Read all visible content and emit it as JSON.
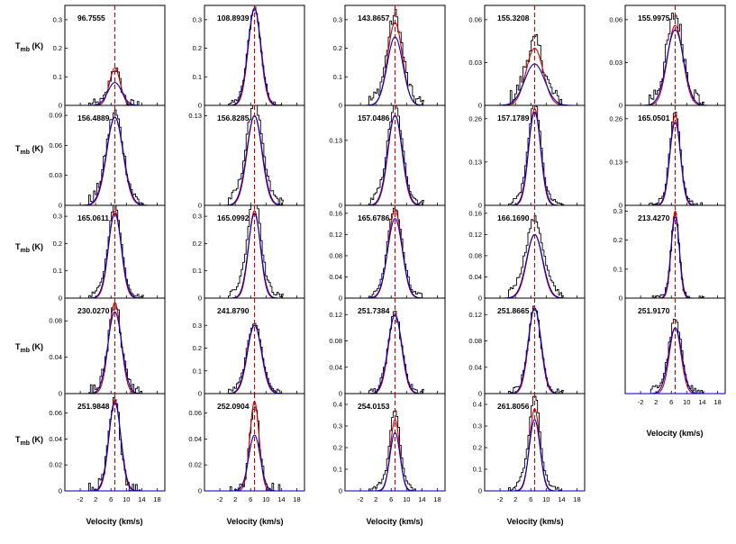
{
  "chart_data": {
    "type": "line",
    "ylabel": "Tmb (K)",
    "ylabel_main": "T",
    "ylabel_sub": "mb",
    "ylabel_unit": "(K)",
    "xlabel": "Velocity (km/s)",
    "xlim": [
      -6,
      20
    ],
    "xticks": [
      "-2",
      "2",
      "6",
      "10",
      "14",
      "18"
    ],
    "xtick_values": [
      -2,
      2,
      6,
      10,
      14,
      18
    ],
    "reference_velocity": 7.0,
    "colors": {
      "observed": "#000000",
      "model_a": "#cc0000",
      "model_b": "#0000cc",
      "reference_line": "#cc0000"
    },
    "legend": "none",
    "grid": false,
    "panels": [
      {
        "label": "96.7555",
        "ylim": [
          0,
          0.35
        ],
        "yticks": [
          "0",
          "0.1",
          "0.2",
          "0.3"
        ],
        "ytick_values": [
          0,
          0.1,
          0.2,
          0.3
        ],
        "peak_red": 0.13,
        "peak_blue": 0.08,
        "width_red": 1.4,
        "width_blue": 1.8,
        "noise": 0.018,
        "wing": 0.01
      },
      {
        "label": "108.8939",
        "ylim": [
          0,
          0.35
        ],
        "yticks": [
          "0",
          "0.1",
          "0.2",
          "0.3"
        ],
        "ytick_values": [
          0,
          0.1,
          0.2,
          0.3
        ],
        "peak_red": 0.34,
        "peak_blue": 0.34,
        "width_red": 1.6,
        "width_blue": 1.7,
        "noise": 0.008,
        "wing": 0.03
      },
      {
        "label": "143.8657",
        "ylim": [
          0,
          0.35
        ],
        "yticks": [
          "0",
          "0.1",
          "0.2",
          "0.3"
        ],
        "ytick_values": [
          0,
          0.1,
          0.2,
          0.3
        ],
        "peak_red": 0.29,
        "peak_blue": 0.24,
        "width_red": 1.9,
        "width_blue": 2.0,
        "noise": 0.025,
        "wing": 0.05
      },
      {
        "label": "155.3208",
        "ylim": [
          0,
          0.07
        ],
        "yticks": [
          "0",
          "0.03",
          "0.06"
        ],
        "ytick_values": [
          0,
          0.03,
          0.06
        ],
        "peak_red": 0.04,
        "peak_blue": 0.029,
        "width_red": 2.2,
        "width_blue": 2.6,
        "noise": 0.006,
        "wing": 0.008
      },
      {
        "label": "155.9975",
        "ylim": [
          0,
          0.07
        ],
        "yticks": [
          "0",
          "0.03",
          "0.06"
        ],
        "ytick_values": [
          0,
          0.03,
          0.06
        ],
        "peak_red": 0.056,
        "peak_blue": 0.053,
        "width_red": 2.0,
        "width_blue": 2.2,
        "noise": 0.007,
        "wing": 0.012
      },
      {
        "label": "156.4889",
        "ylim": [
          0,
          0.1
        ],
        "yticks": [
          "0",
          "0.03",
          "0.06",
          "0.09"
        ],
        "ytick_values": [
          0,
          0.03,
          0.06,
          0.09
        ],
        "peak_red": 0.088,
        "peak_blue": 0.088,
        "width_red": 2.1,
        "width_blue": 2.2,
        "noise": 0.006,
        "wing": 0.012
      },
      {
        "label": "156.8285",
        "ylim": [
          0,
          0.145
        ],
        "yticks": [
          "0",
          "0.13"
        ],
        "ytick_values": [
          0,
          0.13
        ],
        "peak_red": 0.13,
        "peak_blue": 0.13,
        "width_red": 1.9,
        "width_blue": 2.0,
        "noise": 0.006,
        "wing": 0.03
      },
      {
        "label": "157.0486",
        "ylim": [
          0,
          0.2
        ],
        "yticks": [
          "0",
          "0.13"
        ],
        "ytick_values": [
          0,
          0.13
        ],
        "peak_red": 0.18,
        "peak_blue": 0.18,
        "width_red": 1.8,
        "width_blue": 1.9,
        "noise": 0.007,
        "wing": 0.035
      },
      {
        "label": "157.1789",
        "ylim": [
          0,
          0.3
        ],
        "yticks": [
          "0",
          "0.13",
          "0.26"
        ],
        "ytick_values": [
          0,
          0.13,
          0.26
        ],
        "peak_red": 0.29,
        "peak_blue": 0.28,
        "width_red": 1.5,
        "width_blue": 1.6,
        "noise": 0.007,
        "wing": 0.05
      },
      {
        "label": "165.0501",
        "ylim": [
          0,
          0.3
        ],
        "yticks": [
          "0",
          "0.13",
          "0.26"
        ],
        "ytick_values": [
          0,
          0.13,
          0.26
        ],
        "peak_red": 0.27,
        "peak_blue": 0.25,
        "width_red": 1.3,
        "width_blue": 1.4,
        "noise": 0.007,
        "wing": 0.03
      },
      {
        "label": "165.0611",
        "ylim": [
          0,
          0.34
        ],
        "yticks": [
          "0",
          "0.1",
          "0.2",
          "0.3"
        ],
        "ytick_values": [
          0,
          0.1,
          0.2,
          0.3
        ],
        "peak_red": 0.32,
        "peak_blue": 0.31,
        "width_red": 1.6,
        "width_blue": 1.7,
        "noise": 0.008,
        "wing": 0.05
      },
      {
        "label": "165.0992",
        "ylim": [
          0,
          0.34
        ],
        "yticks": [
          "0",
          "0.1",
          "0.2",
          "0.3"
        ],
        "ytick_values": [
          0,
          0.1,
          0.2,
          0.3
        ],
        "peak_red": 0.32,
        "peak_blue": 0.31,
        "width_red": 1.5,
        "width_blue": 1.6,
        "noise": 0.01,
        "wing": 0.1
      },
      {
        "label": "165.6786",
        "ylim": [
          0,
          0.175
        ],
        "yticks": [
          "0",
          "0.04",
          "0.08",
          "0.12",
          "0.16"
        ],
        "ytick_values": [
          0,
          0.04,
          0.08,
          0.12,
          0.16
        ],
        "peak_red": 0.165,
        "peak_blue": 0.15,
        "width_red": 1.8,
        "width_blue": 1.9,
        "noise": 0.006,
        "wing": 0.02
      },
      {
        "label": "166.1690",
        "ylim": [
          0,
          0.175
        ],
        "yticks": [
          "0",
          "0.04",
          "0.08",
          "0.12",
          "0.16"
        ],
        "ytick_values": [
          0,
          0.04,
          0.08,
          0.12,
          0.16
        ],
        "peak_red": 0.12,
        "peak_blue": 0.12,
        "width_red": 2.0,
        "width_blue": 2.1,
        "noise": 0.006,
        "wing": 0.04
      },
      {
        "label": "213.4270",
        "ylim": [
          0,
          0.32
        ],
        "yticks": [
          "0",
          "0.1",
          "0.2",
          "0.3"
        ],
        "ytick_values": [
          0,
          0.1,
          0.2,
          0.3
        ],
        "peak_red": 0.3,
        "peak_blue": 0.28,
        "width_red": 1.0,
        "width_blue": 1.1,
        "noise": 0.007,
        "wing": 0.02
      },
      {
        "label": "230.0270",
        "ylim": [
          0,
          0.105
        ],
        "yticks": [
          "0",
          "0.04",
          "0.08"
        ],
        "ytick_values": [
          0,
          0.04,
          0.08
        ],
        "peak_red": 0.1,
        "peak_blue": 0.09,
        "width_red": 1.6,
        "width_blue": 1.8,
        "noise": 0.009,
        "wing": 0.01
      },
      {
        "label": "241.8790",
        "ylim": [
          0,
          0.42
        ],
        "yticks": [
          "0",
          "0.1",
          "0.2",
          "0.3"
        ],
        "ytick_values": [
          0,
          0.1,
          0.2,
          0.3
        ],
        "peak_red": 0.3,
        "peak_blue": 0.3,
        "width_red": 1.8,
        "width_blue": 1.9,
        "noise": 0.01,
        "wing": 0.04
      },
      {
        "label": "251.7384",
        "ylim": [
          0,
          0.145
        ],
        "yticks": [
          "0",
          "0.04",
          "0.08",
          "0.12"
        ],
        "ytick_values": [
          0,
          0.04,
          0.08,
          0.12
        ],
        "peak_red": 0.12,
        "peak_blue": 0.12,
        "width_red": 1.7,
        "width_blue": 1.8,
        "noise": 0.006,
        "wing": 0.01
      },
      {
        "label": "251.8665",
        "ylim": [
          0,
          0.145
        ],
        "yticks": [
          "0",
          "0.04",
          "0.08",
          "0.12"
        ],
        "ytick_values": [
          0,
          0.04,
          0.08,
          0.12
        ],
        "peak_red": 0.13,
        "peak_blue": 0.13,
        "width_red": 1.6,
        "width_blue": 1.7,
        "noise": 0.006,
        "wing": 0.01
      },
      {
        "label": "251.9170",
        "ylim": [
          0,
          0.145
        ],
        "yticks": [],
        "ytick_values": [],
        "peak_red": 0.1,
        "peak_blue": 0.1,
        "width_red": 1.5,
        "width_blue": 1.7,
        "noise": 0.006,
        "wing": 0.02
      },
      {
        "label": "251.9848",
        "ylim": [
          0,
          0.075
        ],
        "yticks": [
          "0",
          "0.02",
          "0.04",
          "0.06"
        ],
        "ytick_values": [
          0,
          0.02,
          0.04,
          0.06
        ],
        "peak_red": 0.07,
        "peak_blue": 0.068,
        "width_red": 1.5,
        "width_blue": 1.6,
        "noise": 0.006,
        "wing": 0.004
      },
      {
        "label": "252.0904",
        "ylim": [
          0,
          0.075
        ],
        "yticks": [
          "0",
          "0.02",
          "0.04",
          "0.06"
        ],
        "ytick_values": [
          0,
          0.02,
          0.04,
          0.06
        ],
        "peak_red": 0.069,
        "peak_blue": 0.043,
        "width_red": 1.2,
        "width_blue": 1.5,
        "noise": 0.006,
        "wing": 0.004
      },
      {
        "label": "254.0153",
        "ylim": [
          0,
          0.45
        ],
        "yticks": [
          "0",
          "0.1",
          "0.2",
          "0.3",
          "0.4"
        ],
        "ytick_values": [
          0,
          0.1,
          0.2,
          0.3,
          0.4
        ],
        "peak_red": 0.33,
        "peak_blue": 0.27,
        "width_red": 1.2,
        "width_blue": 1.3,
        "noise": 0.01,
        "wing": 0.08
      },
      {
        "label": "261.8056",
        "ylim": [
          0,
          0.45
        ],
        "yticks": [
          "0",
          "0.1",
          "0.2",
          "0.3",
          "0.4"
        ],
        "ytick_values": [
          0,
          0.1,
          0.2,
          0.3,
          0.4
        ],
        "peak_red": 0.38,
        "peak_blue": 0.33,
        "width_red": 1.3,
        "width_blue": 1.4,
        "noise": 0.01,
        "wing": 0.1
      }
    ]
  }
}
